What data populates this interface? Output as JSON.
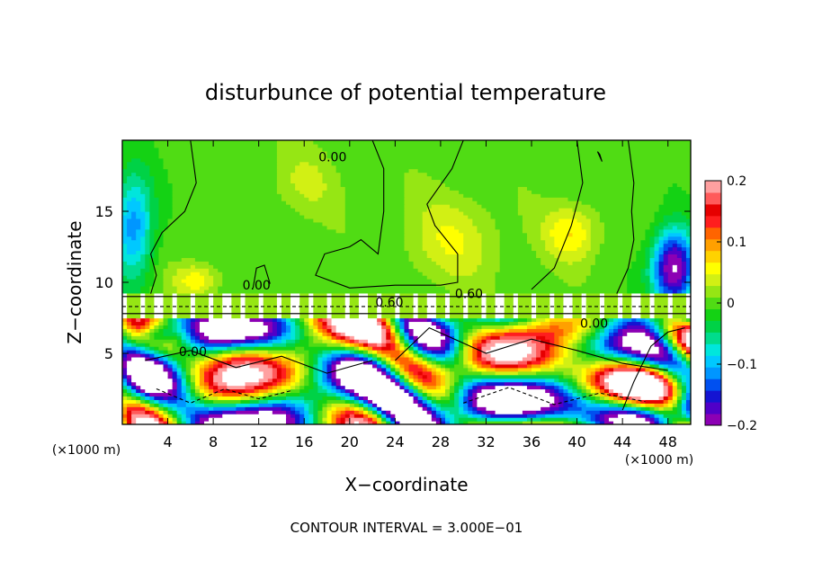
{
  "chart_data": {
    "type": "heatmap",
    "title": "disturbunce of potential temperature",
    "xlabel": "X−coordinate",
    "ylabel": "Z−coordinate",
    "x_unit_left": "(×1000 m)",
    "x_unit_right": "(×1000 m)",
    "footer": "CONTOUR INTERVAL = 3.000E−01",
    "xlim": [
      0,
      50
    ],
    "ylim": [
      0,
      20
    ],
    "x_ticks": [
      {
        "value": 4,
        "label": "4"
      },
      {
        "value": 8,
        "label": "8"
      },
      {
        "value": 12,
        "label": "12"
      },
      {
        "value": 16,
        "label": "16"
      },
      {
        "value": 20,
        "label": "20"
      },
      {
        "value": 24,
        "label": "24"
      },
      {
        "value": 28,
        "label": "28"
      },
      {
        "value": 32,
        "label": "32"
      },
      {
        "value": 36,
        "label": "36"
      },
      {
        "value": 40,
        "label": "40"
      },
      {
        "value": 44,
        "label": "44"
      },
      {
        "value": 48,
        "label": "48"
      }
    ],
    "y_ticks": [
      {
        "value": 5,
        "label": "5"
      },
      {
        "value": 10,
        "label": "10"
      },
      {
        "value": 15,
        "label": "15"
      }
    ],
    "colorbar": {
      "min": -0.2,
      "max": 0.2,
      "ticks": [
        {
          "value": 0.2,
          "label": "0.2"
        },
        {
          "value": 0.1,
          "label": "0.1"
        },
        {
          "value": 0,
          "label": "0"
        },
        {
          "value": -0.1,
          "label": "−0.1"
        },
        {
          "value": -0.2,
          "label": "−0.2"
        }
      ],
      "colors": [
        "#8c00b4",
        "#5000c8",
        "#1414d2",
        "#0050f0",
        "#0096ff",
        "#00c8ff",
        "#00e6dc",
        "#00dc8c",
        "#00d246",
        "#14d214",
        "#50dc14",
        "#96e614",
        "#d2f014",
        "#ffff00",
        "#ffd200",
        "#ffa000",
        "#ff6400",
        "#ff1e1e",
        "#e60000",
        "#ff5a5a",
        "#ffa0a0"
      ]
    },
    "contour_labels": [
      {
        "text": "0.00",
        "x": 18.5,
        "y": 18.5
      },
      {
        "text": "0.00",
        "x": 11.8,
        "y": 9.5
      },
      {
        "text": "0.60",
        "x": 23.5,
        "y": 8.3
      },
      {
        "text": "0.60",
        "x": 30.5,
        "y": 8.9
      },
      {
        "text": "0.00",
        "x": 6.2,
        "y": 4.8
      },
      {
        "text": "0.00",
        "x": 41.5,
        "y": 6.8
      }
    ]
  }
}
